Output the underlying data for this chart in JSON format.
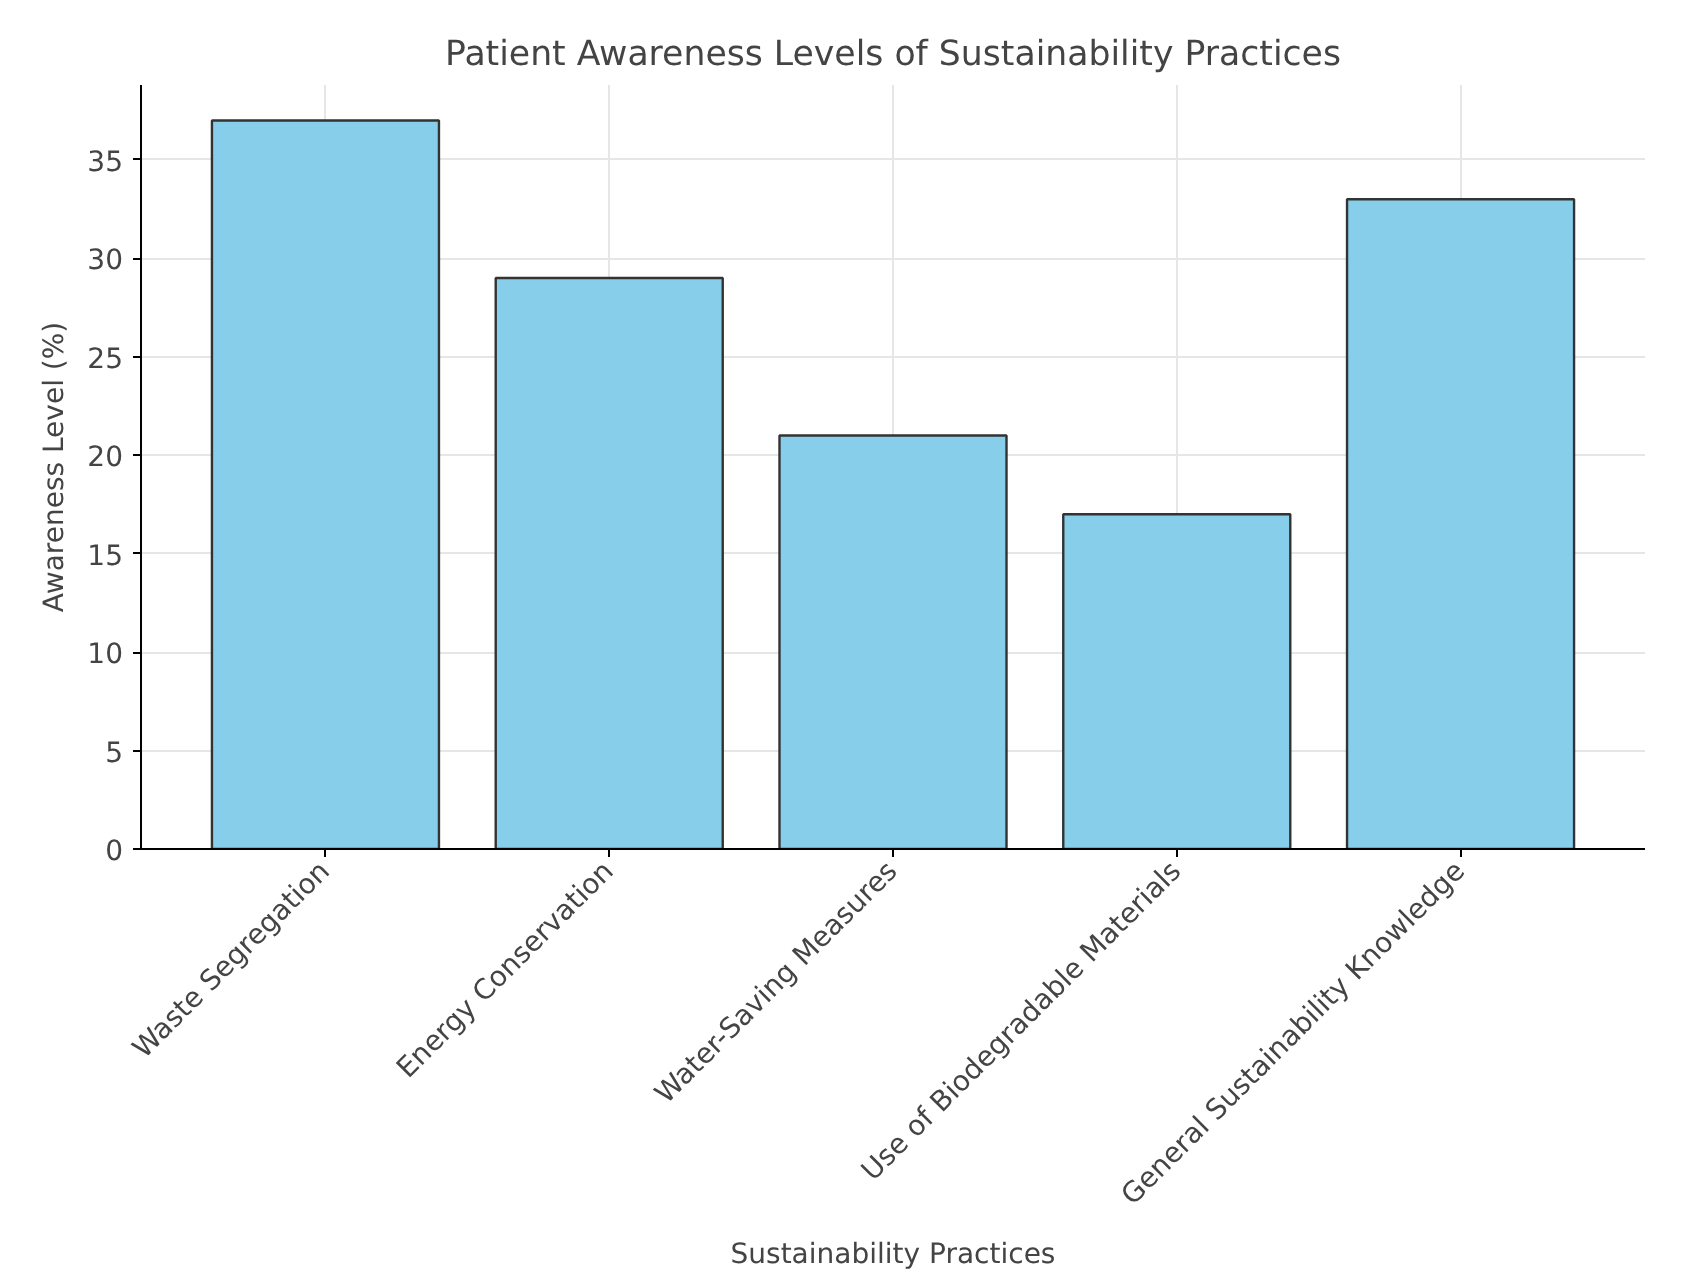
{
  "chart_data": {
    "type": "bar",
    "title": "Patient Awareness Levels of Sustainability Practices",
    "xlabel": "Sustainability Practices",
    "ylabel": "Awareness Level (%)",
    "categories": [
      "Waste Segregation",
      "Energy Conservation",
      "Water-Saving Measures",
      "Use of Biodegradable Materials",
      "General Sustainability Knowledge"
    ],
    "values": [
      37,
      29,
      21,
      17,
      33
    ],
    "color": "#87ceeb",
    "ylim": [
      0,
      38.8
    ],
    "yticks": [
      0,
      5,
      10,
      15,
      20,
      25,
      30,
      35
    ],
    "grid": true
  }
}
